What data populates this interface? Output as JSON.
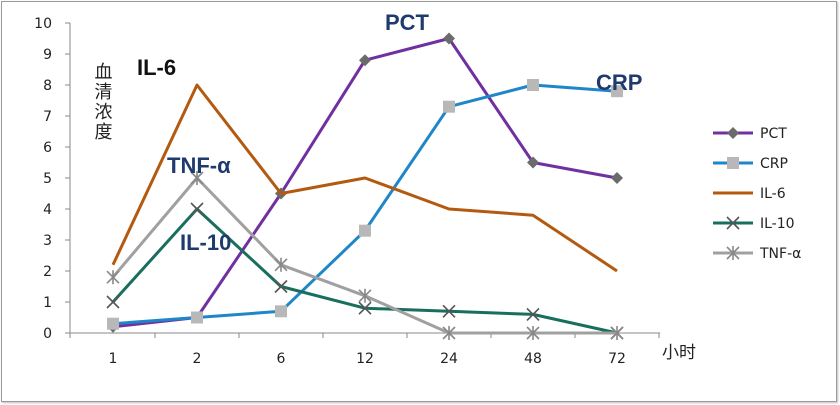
{
  "chart_data": {
    "type": "line",
    "title": "",
    "xlabel": "小时",
    "ylabel": "血清浓度",
    "ylim": [
      0,
      10
    ],
    "yticks": [
      "0",
      "1",
      "2",
      "3",
      "4",
      "5",
      "6",
      "7",
      "8",
      "9",
      "10"
    ],
    "categories": [
      "1",
      "2",
      "6",
      "12",
      "24",
      "48",
      "72"
    ],
    "series": [
      {
        "name": "PCT",
        "color": "#7030a0",
        "marker": "diamond",
        "values": [
          0.2,
          0.5,
          4.5,
          8.8,
          9.5,
          5.5,
          5.0
        ]
      },
      {
        "name": "CRP",
        "color": "#1f86c8",
        "marker": "square",
        "values": [
          0.3,
          0.5,
          0.7,
          3.3,
          7.3,
          8.0,
          7.8
        ]
      },
      {
        "name": "IL-6",
        "color": "#b35a10",
        "marker": "none",
        "values": [
          2.2,
          8.0,
          4.5,
          5.0,
          4.0,
          3.8,
          2.0
        ]
      },
      {
        "name": "IL-10",
        "color": "#1a6e5e",
        "marker": "x",
        "values": [
          1.0,
          4.0,
          1.5,
          0.8,
          0.7,
          0.6,
          0.0
        ]
      },
      {
        "name": "TNF-α",
        "color": "#a0a0a0",
        "marker": "star",
        "values": [
          1.8,
          5.0,
          2.2,
          1.2,
          0.0,
          0.0,
          0.0
        ]
      }
    ],
    "annotations": [
      {
        "text": "PCT",
        "color": "#1f3a6e"
      },
      {
        "text": "CRP",
        "color": "#1f3a6e"
      },
      {
        "text": "IL-6",
        "color": "#111111"
      },
      {
        "text": "TNF-α",
        "color": "#1f3a6e"
      },
      {
        "text": "IL-10",
        "color": "#1f3a6e"
      }
    ],
    "legend_position": "right",
    "grid": false
  }
}
